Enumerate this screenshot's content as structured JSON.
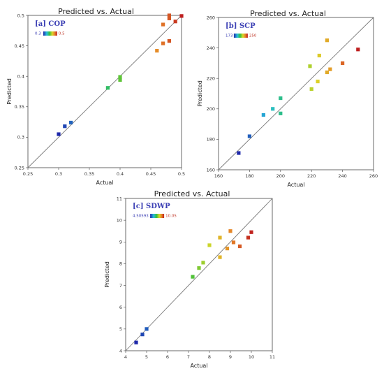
{
  "chart_data": [
    {
      "type": "scatter",
      "title": "Predicted vs. Actual",
      "xlabel": "Actual",
      "ylabel": "Predicted",
      "tag": "[a] COP",
      "colorbar": {
        "min_label": "0.3",
        "max_label": "0.5"
      },
      "xlim": [
        0.25,
        0.5
      ],
      "ylim": [
        0.25,
        0.5
      ],
      "xticks": [
        "0.25",
        "0.3",
        "0.35",
        "0.4",
        "0.45",
        "0.5"
      ],
      "yticks": [
        "0.25",
        "0.3",
        "0.35",
        "0.4",
        "0.45",
        "0.5"
      ],
      "cmin": 0.3,
      "cmax": 0.5,
      "points": [
        {
          "x": 0.3,
          "y": 0.305
        },
        {
          "x": 0.31,
          "y": 0.318
        },
        {
          "x": 0.32,
          "y": 0.324
        },
        {
          "x": 0.38,
          "y": 0.381
        },
        {
          "x": 0.4,
          "y": 0.394
        },
        {
          "x": 0.4,
          "y": 0.399
        },
        {
          "x": 0.46,
          "y": 0.442
        },
        {
          "x": 0.47,
          "y": 0.454
        },
        {
          "x": 0.48,
          "y": 0.458
        },
        {
          "x": 0.47,
          "y": 0.485
        },
        {
          "x": 0.48,
          "y": 0.495
        },
        {
          "x": 0.48,
          "y": 0.5
        },
        {
          "x": 0.49,
          "y": 0.49
        },
        {
          "x": 0.5,
          "y": 0.499
        }
      ]
    },
    {
      "type": "scatter",
      "title": "Predicted vs. Actual",
      "xlabel": "Actual",
      "ylabel": "Predicted",
      "tag": "[b] SCP",
      "colorbar": {
        "min_label": "173",
        "max_label": "250"
      },
      "xlim": [
        160,
        260
      ],
      "ylim": [
        160,
        260
      ],
      "xticks": [
        "160",
        "180",
        "200",
        "220",
        "240",
        "260"
      ],
      "yticks": [
        "160",
        "180",
        "200",
        "220",
        "240",
        "260"
      ],
      "cmin": 173,
      "cmax": 250,
      "points": [
        {
          "x": 173,
          "y": 171
        },
        {
          "x": 180,
          "y": 182
        },
        {
          "x": 189,
          "y": 196
        },
        {
          "x": 195,
          "y": 200
        },
        {
          "x": 200,
          "y": 197
        },
        {
          "x": 200,
          "y": 207
        },
        {
          "x": 219,
          "y": 228
        },
        {
          "x": 220,
          "y": 213
        },
        {
          "x": 224,
          "y": 218
        },
        {
          "x": 225,
          "y": 235
        },
        {
          "x": 230,
          "y": 224
        },
        {
          "x": 232,
          "y": 226
        },
        {
          "x": 230,
          "y": 245
        },
        {
          "x": 240,
          "y": 230
        },
        {
          "x": 250,
          "y": 239
        }
      ]
    },
    {
      "type": "scatter",
      "title": "Predicted vs. Actual",
      "xlabel": "Actual",
      "ylabel": "Predicted",
      "tag": "[c] SDWP",
      "colorbar": {
        "min_label": "4.50593",
        "max_label": "10.05"
      },
      "xlim": [
        4,
        11
      ],
      "ylim": [
        4,
        11
      ],
      "xticks": [
        "4",
        "5",
        "6",
        "7",
        "8",
        "9",
        "10",
        "11"
      ],
      "yticks": [
        "4",
        "5",
        "6",
        "7",
        "8",
        "9",
        "10",
        "11"
      ],
      "cmin": 4.50593,
      "cmax": 10.05,
      "points": [
        {
          "x": 4.5,
          "y": 4.38
        },
        {
          "x": 4.8,
          "y": 4.75
        },
        {
          "x": 5.0,
          "y": 5.0
        },
        {
          "x": 7.2,
          "y": 7.4
        },
        {
          "x": 7.5,
          "y": 7.8
        },
        {
          "x": 7.7,
          "y": 8.05
        },
        {
          "x": 8.0,
          "y": 8.85
        },
        {
          "x": 8.5,
          "y": 8.3
        },
        {
          "x": 8.5,
          "y": 9.2
        },
        {
          "x": 8.85,
          "y": 8.7
        },
        {
          "x": 9.0,
          "y": 9.5
        },
        {
          "x": 9.15,
          "y": 8.98
        },
        {
          "x": 9.45,
          "y": 8.8
        },
        {
          "x": 9.85,
          "y": 9.2
        },
        {
          "x": 10.0,
          "y": 9.45
        }
      ]
    }
  ]
}
